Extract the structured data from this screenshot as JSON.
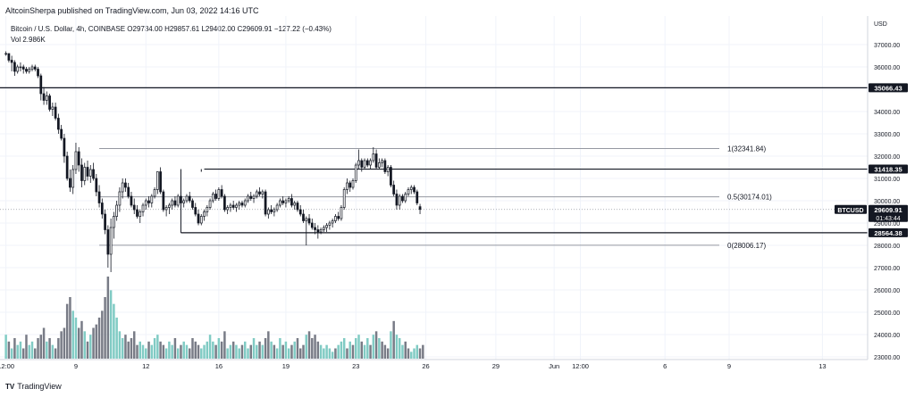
{
  "header": {
    "published": "AltcoinSherpa published on TradingView.com, Jun 03, 2022 14:16 UTC",
    "symbol_line": "Bitcoin / U.S. Dollar, 4h, COINBASE  O29734.00  H29857.61  L29402.00  C29609.91  −127.22 (−0.43%)",
    "volume_line": "Vol  2.986K"
  },
  "brand": {
    "logo_text": "TV",
    "name": "TradingView"
  },
  "colors": {
    "candle": "#131722",
    "volume_up": "#80cbc4",
    "volume_down": "#787b86",
    "grid": "#f0f3fa",
    "level_line": "#131722",
    "fib_line": "#9598a1",
    "price_line": "#9598a1",
    "price_tag_bg": "#131722"
  },
  "chart_data": {
    "type": "candlestick",
    "symbol": "BTCUSD",
    "exchange": "COINBASE",
    "interval": "4h",
    "currency": "USD",
    "ylim": [
      23000,
      38000
    ],
    "y_ticks": [
      37000,
      36000,
      35000,
      34000,
      33000,
      32000,
      31000,
      30000,
      29000,
      28000,
      27000,
      26000,
      25000,
      24000,
      23000
    ],
    "y_tick_labels": [
      "37000.00",
      "36000.00",
      "35000.00",
      "34000.00",
      "33000.00",
      "32000.00",
      "31000.00",
      "30000.00",
      "29000.00",
      "28000.00",
      "27000.00",
      "26000.00",
      "25000.00",
      "24000.00",
      "23000.00"
    ],
    "x_tick_labels": [
      "12:00",
      "9",
      "12",
      "16",
      "19",
      "23",
      "26",
      "29",
      "Jun",
      "12:00",
      "6",
      "9",
      "13"
    ],
    "x_tick_bars": [
      0,
      24,
      48,
      73,
      96,
      120,
      144,
      168,
      188,
      197,
      226,
      248,
      280
    ],
    "candles": [
      [
        36600,
        36700,
        36500,
        36600
      ],
      [
        36600,
        36600,
        36200,
        36300
      ],
      [
        36300,
        36500,
        35800,
        36200
      ],
      [
        36200,
        36300,
        35600,
        35800
      ],
      [
        35800,
        36100,
        35700,
        36000
      ],
      [
        36000,
        36200,
        35800,
        36000
      ],
      [
        36000,
        36100,
        35700,
        35900
      ],
      [
        35900,
        36000,
        35700,
        35800
      ],
      [
        35800,
        36000,
        35700,
        35900
      ],
      [
        35900,
        36100,
        35800,
        36000
      ],
      [
        36000,
        36100,
        35800,
        35900
      ],
      [
        35900,
        36000,
        35500,
        35600
      ],
      [
        35600,
        35700,
        34500,
        34800
      ],
      [
        34800,
        35100,
        34300,
        34500
      ],
      [
        34500,
        34900,
        34300,
        34700
      ],
      [
        34700,
        34800,
        34000,
        34100
      ],
      [
        34100,
        34400,
        33800,
        34200
      ],
      [
        34200,
        34400,
        33600,
        33700
      ],
      [
        33700,
        33900,
        33000,
        33200
      ],
      [
        33200,
        33400,
        32700,
        32800
      ],
      [
        32800,
        33000,
        31700,
        32000
      ],
      [
        32000,
        32200,
        30900,
        31000
      ],
      [
        31000,
        31400,
        30400,
        30600
      ],
      [
        30600,
        31600,
        30300,
        31400
      ],
      [
        31400,
        32600,
        31200,
        32200
      ],
      [
        32200,
        32400,
        31300,
        31600
      ],
      [
        31600,
        31900,
        30600,
        30900
      ],
      [
        30900,
        31700,
        30700,
        31500
      ],
      [
        31500,
        31800,
        30900,
        31100
      ],
      [
        31100,
        31600,
        30800,
        31400
      ],
      [
        31400,
        31700,
        30900,
        31000
      ],
      [
        31000,
        31200,
        30200,
        30400
      ],
      [
        30400,
        30700,
        29700,
        29900
      ],
      [
        29900,
        30100,
        29200,
        29400
      ],
      [
        29400,
        29600,
        28500,
        28700
      ],
      [
        28700,
        28900,
        27000,
        27600
      ],
      [
        27600,
        29200,
        26800,
        28800
      ],
      [
        28800,
        29500,
        28300,
        29300
      ],
      [
        29300,
        30000,
        29100,
        29800
      ],
      [
        29800,
        30600,
        29500,
        30400
      ],
      [
        30400,
        31000,
        30100,
        30800
      ],
      [
        30800,
        31000,
        30400,
        30600
      ],
      [
        30600,
        30800,
        30100,
        30200
      ],
      [
        30200,
        30400,
        29700,
        29800
      ],
      [
        29800,
        30100,
        29400,
        29600
      ],
      [
        29600,
        29800,
        29200,
        29300
      ],
      [
        29300,
        29600,
        29000,
        29500
      ],
      [
        29500,
        29900,
        29300,
        29800
      ],
      [
        29800,
        30100,
        29600,
        30000
      ],
      [
        30000,
        30200,
        29700,
        29900
      ],
      [
        29900,
        30300,
        29700,
        30200
      ],
      [
        30200,
        30600,
        30100,
        30500
      ],
      [
        30500,
        31300,
        30300,
        31300
      ],
      [
        31300,
        31500,
        30300,
        30400
      ],
      [
        30400,
        30500,
        29500,
        29600
      ],
      [
        29600,
        29800,
        29300,
        29700
      ],
      [
        29700,
        29900,
        29400,
        29800
      ],
      [
        29800,
        30100,
        29600,
        30000
      ],
      [
        30000,
        30200,
        29700,
        29800
      ],
      [
        29800,
        30300,
        29700,
        30200
      ],
      [
        30200,
        30400,
        29800,
        29900
      ],
      [
        29900,
        30100,
        29700,
        30000
      ],
      [
        30000,
        30300,
        29900,
        30200
      ],
      [
        30200,
        30400,
        29900,
        30000
      ],
      [
        30000,
        30100,
        29600,
        29700
      ],
      [
        29700,
        29900,
        29300,
        29400
      ],
      [
        29400,
        29600,
        28900,
        29000
      ],
      [
        29000,
        29400,
        28900,
        29300
      ],
      [
        29300,
        29600,
        29100,
        29500
      ],
      [
        29500,
        29800,
        29300,
        29700
      ],
      [
        29700,
        30100,
        29600,
        30000
      ],
      [
        30000,
        30400,
        29900,
        30300
      ],
      [
        30300,
        30500,
        30000,
        30100
      ],
      [
        30100,
        30600,
        30000,
        30500
      ],
      [
        30500,
        30700,
        30100,
        30200
      ],
      [
        30200,
        30300,
        29500,
        29600
      ],
      [
        29600,
        29800,
        29400,
        29700
      ],
      [
        29700,
        29900,
        29500,
        29800
      ],
      [
        29800,
        30000,
        29600,
        29700
      ],
      [
        29700,
        29900,
        29500,
        29800
      ],
      [
        29800,
        30000,
        29600,
        29900
      ],
      [
        29900,
        30000,
        29700,
        29800
      ],
      [
        29800,
        30100,
        29700,
        30000
      ],
      [
        30000,
        30300,
        29900,
        30200
      ],
      [
        30200,
        30400,
        30000,
        30100
      ],
      [
        30100,
        30300,
        29900,
        30200
      ],
      [
        30200,
        30500,
        30100,
        30400
      ],
      [
        30400,
        30600,
        30200,
        30300
      ],
      [
        30300,
        30500,
        30100,
        30400
      ],
      [
        30400,
        30500,
        29300,
        29400
      ],
      [
        29400,
        29700,
        29200,
        29600
      ],
      [
        29600,
        29800,
        29400,
        29500
      ],
      [
        29500,
        29700,
        29300,
        29600
      ],
      [
        29600,
        29900,
        29500,
        29800
      ],
      [
        29800,
        30100,
        29700,
        30000
      ],
      [
        30000,
        30200,
        29800,
        29900
      ],
      [
        29900,
        30100,
        29700,
        30000
      ],
      [
        30000,
        30200,
        29900,
        30100
      ],
      [
        30100,
        30300,
        29700,
        29800
      ],
      [
        29800,
        30000,
        29600,
        29900
      ],
      [
        29900,
        30000,
        29500,
        29600
      ],
      [
        29600,
        29800,
        29300,
        29400
      ],
      [
        29400,
        29600,
        29000,
        29100
      ],
      [
        29100,
        29300,
        28000,
        29200
      ],
      [
        29200,
        29400,
        28900,
        29000
      ],
      [
        29000,
        29200,
        28700,
        28800
      ],
      [
        28800,
        29000,
        28500,
        28700
      ],
      [
        28700,
        28900,
        28300,
        28600
      ],
      [
        28600,
        28800,
        28500,
        28700
      ],
      [
        28700,
        28900,
        28600,
        28800
      ],
      [
        28800,
        29000,
        28600,
        28900
      ],
      [
        28900,
        29100,
        28700,
        29000
      ],
      [
        29000,
        29200,
        28800,
        29100
      ],
      [
        29100,
        29400,
        29000,
        29300
      ],
      [
        29300,
        29500,
        29100,
        29200
      ],
      [
        29200,
        29800,
        29100,
        29700
      ],
      [
        29700,
        30600,
        29600,
        30500
      ],
      [
        30500,
        31000,
        30300,
        30800
      ],
      [
        30800,
        30900,
        30400,
        30600
      ],
      [
        30600,
        31000,
        30500,
        30900
      ],
      [
        30900,
        31700,
        30800,
        31600
      ],
      [
        31600,
        32300,
        31400,
        31800
      ],
      [
        31800,
        31900,
        31300,
        31500
      ],
      [
        31500,
        31900,
        31400,
        31800
      ],
      [
        31800,
        31900,
        31500,
        31600
      ],
      [
        31600,
        31900,
        31400,
        31800
      ],
      [
        31800,
        32400,
        31700,
        32100
      ],
      [
        32100,
        32300,
        31400,
        31500
      ],
      [
        31500,
        31900,
        31400,
        31700
      ],
      [
        31700,
        31900,
        31500,
        31800
      ],
      [
        31800,
        31900,
        31200,
        31300
      ],
      [
        31300,
        31600,
        31100,
        31500
      ],
      [
        31500,
        31600,
        30600,
        30700
      ],
      [
        30700,
        30900,
        30200,
        30300
      ],
      [
        30300,
        30500,
        29600,
        29800
      ],
      [
        29800,
        30300,
        29600,
        30200
      ],
      [
        30200,
        30300,
        29900,
        30000
      ],
      [
        30000,
        30400,
        29900,
        30300
      ],
      [
        30300,
        30600,
        30200,
        30500
      ],
      [
        30500,
        30700,
        30300,
        30600
      ],
      [
        30600,
        30700,
        30300,
        30400
      ],
      [
        30400,
        30500,
        29800,
        29900
      ],
      [
        29734,
        29858,
        29402,
        29610
      ]
    ],
    "volume": [
      7,
      5,
      3,
      6,
      4,
      5,
      3,
      7,
      4,
      5,
      3,
      6,
      7,
      9,
      5,
      6,
      4,
      3,
      6,
      8,
      9,
      16,
      18,
      14,
      12,
      9,
      11,
      8,
      5,
      7,
      9,
      10,
      12,
      14,
      18,
      24,
      20,
      16,
      12,
      8,
      6,
      7,
      5,
      6,
      8,
      4,
      5,
      4,
      3,
      5,
      4,
      6,
      7,
      5,
      4,
      3,
      5,
      4,
      6,
      3,
      4,
      5,
      4,
      3,
      6,
      5,
      4,
      3,
      4,
      5,
      7,
      5,
      4,
      6,
      5,
      8,
      3,
      4,
      5,
      4,
      3,
      4,
      5,
      3,
      4,
      6,
      4,
      5,
      4,
      6,
      8,
      5,
      4,
      3,
      6,
      4,
      5,
      3,
      4,
      5,
      6,
      3,
      4,
      7,
      8,
      6,
      7,
      5,
      4,
      3,
      4,
      3,
      2,
      3,
      4,
      5,
      6,
      3,
      5,
      4,
      6,
      7,
      5,
      4,
      6,
      4,
      7,
      8,
      6,
      5,
      4,
      3,
      8,
      11,
      7,
      6,
      4,
      5,
      3,
      2,
      3,
      4,
      3,
      4
    ],
    "volume_up_mask": [
      1,
      0,
      1,
      0,
      1,
      1,
      0,
      0,
      1,
      1,
      0,
      0,
      0,
      0,
      1,
      0,
      1,
      0,
      0,
      0,
      0,
      0,
      0,
      1,
      1,
      0,
      0,
      1,
      0,
      1,
      0,
      0,
      0,
      0,
      0,
      0,
      1,
      1,
      1,
      1,
      1,
      0,
      0,
      0,
      0,
      0,
      1,
      1,
      1,
      0,
      1,
      1,
      1,
      0,
      0,
      1,
      1,
      1,
      0,
      1,
      0,
      1,
      1,
      0,
      0,
      0,
      0,
      1,
      1,
      1,
      1,
      1,
      0,
      1,
      0,
      0,
      1,
      1,
      0,
      1,
      1,
      0,
      1,
      1,
      0,
      1,
      1,
      0,
      1,
      0,
      0,
      1,
      0,
      1,
      1,
      0,
      1,
      1,
      0,
      1,
      0,
      0,
      0,
      1,
      0,
      0,
      0,
      0,
      1,
      1,
      1,
      1,
      1,
      0,
      1,
      1,
      1,
      0,
      1,
      0,
      1,
      1,
      0,
      1,
      1,
      0,
      1,
      0,
      1,
      0,
      0,
      0,
      1,
      0,
      1,
      1,
      1,
      0,
      0,
      1,
      1,
      1,
      0,
      0
    ],
    "levels": [
      {
        "price": 35066.43,
        "label": "35066.43",
        "extends": "full"
      },
      {
        "price": 31418.35,
        "label": "31418.35",
        "extends": "from-bar-68"
      },
      {
        "price": 28564.38,
        "label": "28564.38",
        "extends": "from-bar-60"
      }
    ],
    "fibonacci": [
      {
        "level": "1",
        "price": 32341.84,
        "label": "1(32341.84)"
      },
      {
        "level": "0.5",
        "price": 30174.01,
        "label": "0.5(30174.01)"
      },
      {
        "level": "0",
        "price": 28006.17,
        "label": "0(28006.17)"
      }
    ],
    "last_price": {
      "label": "BTCUSD",
      "price": 29609.91,
      "price_label": "29609.91",
      "countdown": "01:43:44"
    }
  }
}
